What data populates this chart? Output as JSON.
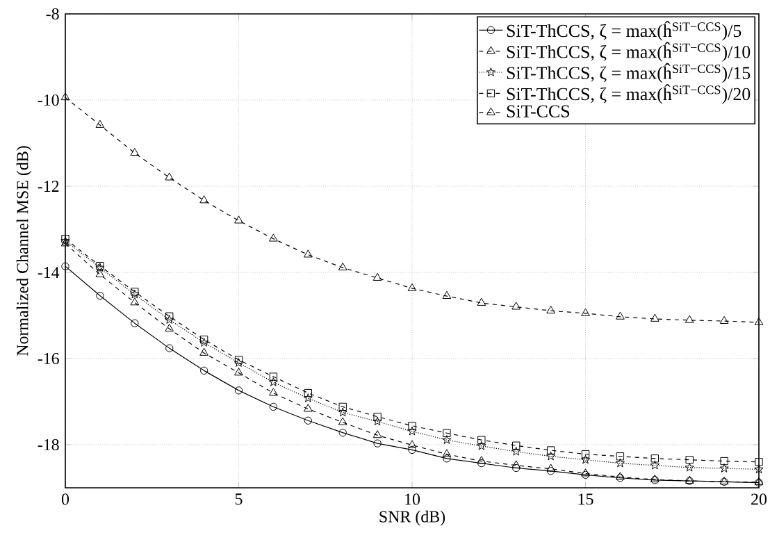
{
  "chart_data": {
    "type": "line",
    "xlabel": "SNR (dB)",
    "ylabel": "Normalized Channel MSE (dB)",
    "x": [
      0,
      1,
      2,
      3,
      4,
      5,
      6,
      7,
      8,
      9,
      10,
      11,
      12,
      13,
      14,
      15,
      16,
      17,
      18,
      19,
      20
    ],
    "series": [
      {
        "name": "SiT-ThCCS, ζ = max(ĥ$^{SiT−CCS}$)/5",
        "color": "#000000",
        "marker": "circle",
        "line_style": "solid",
        "values": [
          -13.86,
          -14.54,
          -15.18,
          -15.76,
          -16.28,
          -16.74,
          -17.12,
          -17.44,
          -17.72,
          -17.97,
          -18.12,
          -18.32,
          -18.43,
          -18.54,
          -18.61,
          -18.7,
          -18.77,
          -18.82,
          -18.84,
          -18.86,
          -18.88
        ]
      },
      {
        "name": "SiT-ThCCS, ζ = max(ĥ$^{SiT−CCS}$)/10",
        "color": "#000000",
        "marker": "triangle",
        "line_style": "dashed",
        "values": [
          -13.33,
          -14.05,
          -14.7,
          -15.31,
          -15.87,
          -16.33,
          -16.8,
          -17.17,
          -17.48,
          -17.78,
          -18.01,
          -18.22,
          -18.38,
          -18.48,
          -18.56,
          -18.67,
          -18.75,
          -18.81,
          -18.84,
          -18.86,
          -18.87
        ]
      },
      {
        "name": "SiT-ThCCS, ζ = max(ĥ$^{SiT−CCS}$)/15",
        "color": "#000000",
        "marker": "star",
        "line_style": "dotted",
        "values": [
          -13.27,
          -13.89,
          -14.51,
          -15.1,
          -15.63,
          -16.1,
          -16.55,
          -16.92,
          -17.25,
          -17.46,
          -17.69,
          -17.89,
          -18.03,
          -18.16,
          -18.27,
          -18.35,
          -18.43,
          -18.48,
          -18.53,
          -18.55,
          -18.57
        ]
      },
      {
        "name": "SiT-ThCCS, ζ = max(ĥ$^{SiT−CCS}$)/20",
        "color": "#000000",
        "marker": "square",
        "line_style": "dashed",
        "values": [
          -13.22,
          -13.85,
          -14.45,
          -15.02,
          -15.56,
          -16.03,
          -16.42,
          -16.8,
          -17.12,
          -17.35,
          -17.56,
          -17.73,
          -17.89,
          -18.02,
          -18.13,
          -18.22,
          -18.27,
          -18.32,
          -18.35,
          -18.38,
          -18.4
        ]
      },
      {
        "name": "SiT-CCS",
        "color": "#000000",
        "marker": "triangle",
        "line_style": "dashed",
        "values": [
          -9.94,
          -10.58,
          -11.23,
          -11.8,
          -12.33,
          -12.8,
          -13.22,
          -13.59,
          -13.89,
          -14.13,
          -14.37,
          -14.55,
          -14.71,
          -14.8,
          -14.89,
          -14.95,
          -15.03,
          -15.08,
          -15.11,
          -15.13,
          -15.16
        ]
      }
    ],
    "xlim": [
      0,
      20
    ],
    "ylim": [
      -19,
      -8
    ],
    "xticks": [
      0,
      5,
      10,
      15,
      20
    ],
    "yticks": [
      -18,
      -16,
      -14,
      -12,
      -10,
      -8
    ],
    "grid": true,
    "legend": "top right"
  }
}
